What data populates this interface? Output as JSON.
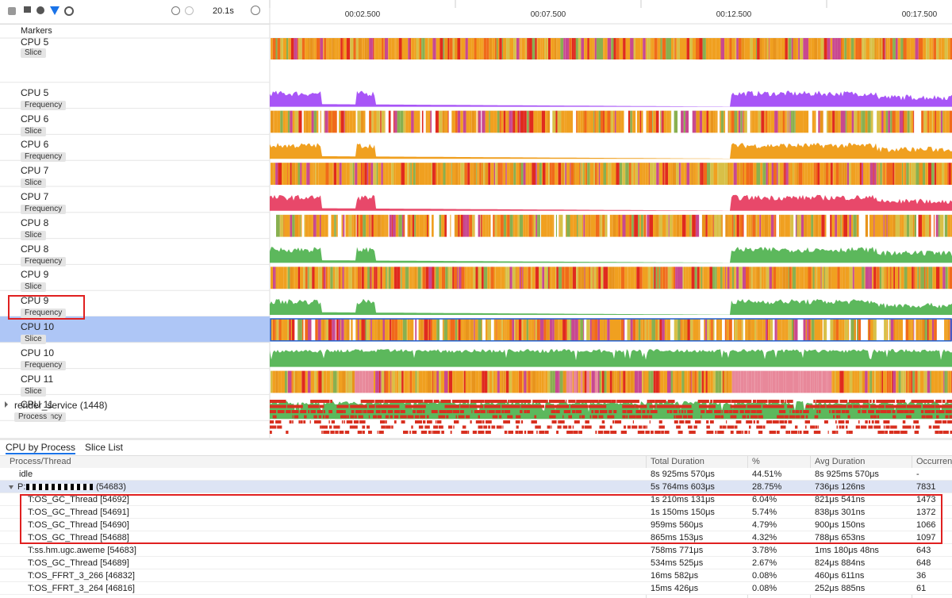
{
  "toolbar": {
    "duration": "20.1s"
  },
  "ruler": {
    "ticks": [
      "00:02.500",
      "00:07.500",
      "00:12.500",
      "00:17.500"
    ]
  },
  "markers_label": "Markers",
  "tracks": [
    {
      "name": "CPU 5",
      "tag": "Slice"
    },
    {
      "name": "CPU 5",
      "tag": "Frequency"
    },
    {
      "name": "CPU 6",
      "tag": "Slice"
    },
    {
      "name": "CPU 6",
      "tag": "Frequency"
    },
    {
      "name": "CPU 7",
      "tag": "Slice"
    },
    {
      "name": "CPU 7",
      "tag": "Frequency"
    },
    {
      "name": "CPU 8",
      "tag": "Slice"
    },
    {
      "name": "CPU 8",
      "tag": "Frequency"
    },
    {
      "name": "CPU 9",
      "tag": "Slice"
    },
    {
      "name": "CPU 9",
      "tag": "Frequency"
    },
    {
      "name": "CPU 10",
      "tag": "Slice"
    },
    {
      "name": "CPU 10",
      "tag": "Frequency"
    },
    {
      "name": "CPU 11",
      "tag": "Slice"
    },
    {
      "name": "CPU 11",
      "tag": "Frequency"
    }
  ],
  "process_track": {
    "name": "render_service (1448)",
    "tag": "Process"
  },
  "tabs": [
    "CPU by Process",
    "Slice List"
  ],
  "table": {
    "columns": [
      "Process/Thread",
      "Total Duration",
      "%",
      "Avg Duration",
      "Occurren"
    ],
    "rows": [
      {
        "name": "idle",
        "total": "8s 925ms 570μs",
        "pct": "44.51%",
        "avg": "8s 925ms 570μs",
        "count": "-"
      },
      {
        "name_prefix": "P:",
        "name_suffix": "(54683)",
        "total": "5s 764ms 603μs",
        "pct": "28.75%",
        "avg": "736μs 126ns",
        "count": 7831,
        "threads": [
          {
            "name": "T:OS_GC_Thread [54692]",
            "total": "1s 210ms 131μs",
            "pct": "6.04%",
            "avg": "821μs 541ns",
            "count": 1473
          },
          {
            "name": "T:OS_GC_Thread [54691]",
            "total": "1s 150ms 150μs",
            "pct": "5.74%",
            "avg": "838μs 301ns",
            "count": 1372
          },
          {
            "name": "T:OS_GC_Thread [54690]",
            "total": "959ms 560μs",
            "pct": "4.79%",
            "avg": "900μs 150ns",
            "count": 1066
          },
          {
            "name": "T:OS_GC_Thread [54688]",
            "total": "865ms 153μs",
            "pct": "4.32%",
            "avg": "788μs 653ns",
            "count": 1097
          },
          {
            "name": "T:ss.hm.ugc.aweme [54683]",
            "total": "758ms 771μs",
            "pct": "3.78%",
            "avg": "1ms 180μs 48ns",
            "count": 643
          },
          {
            "name": "T:OS_GC_Thread [54689]",
            "total": "534ms 525μs",
            "pct": "2.67%",
            "avg": "824μs 884ns",
            "count": 648
          },
          {
            "name": "T:OS_FFRT_3_266 [46832]",
            "total": "16ms 582μs",
            "pct": "0.08%",
            "avg": "460μs 611ns",
            "count": 36
          },
          {
            "name": "T:OS_FFRT_3_264 [46816]",
            "total": "15ms 426μs",
            "pct": "0.08%",
            "avg": "252μs 885ns",
            "count": 61
          }
        ]
      }
    ]
  }
}
